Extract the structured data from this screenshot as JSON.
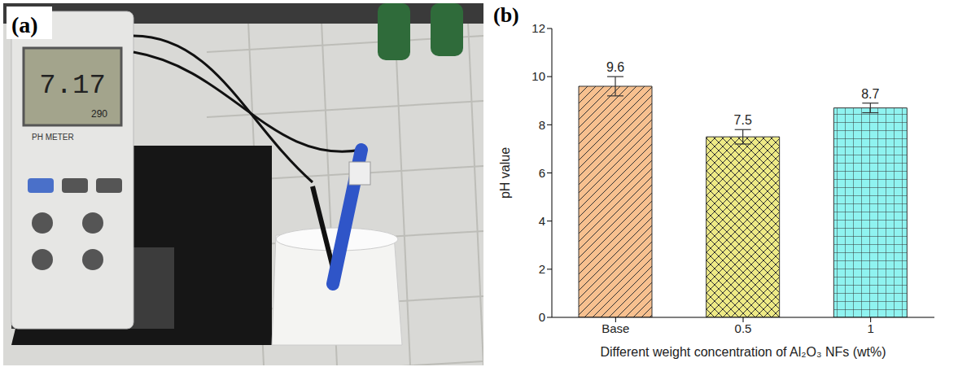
{
  "photo": {
    "label": "(a)",
    "meter_display": "7.17",
    "meter_subdisplay": "290",
    "meter_name": "PH METER"
  },
  "chart_data": {
    "type": "bar",
    "label": "(b)",
    "x_label": "Different weight concentration of Al₂O₃ NFs (wt%)",
    "y_label": "pH value",
    "categories": [
      "Base",
      "0.5",
      "1"
    ],
    "values": [
      9.6,
      7.5,
      8.7
    ],
    "errors": [
      0.4,
      0.3,
      0.2
    ],
    "colors": [
      "#f7c08f",
      "#eeea85",
      "#8ff3f0"
    ],
    "ylim": [
      0,
      12
    ],
    "yticks": [
      0,
      2,
      4,
      6,
      8,
      10,
      12
    ],
    "data_labels": true,
    "grid": false
  }
}
